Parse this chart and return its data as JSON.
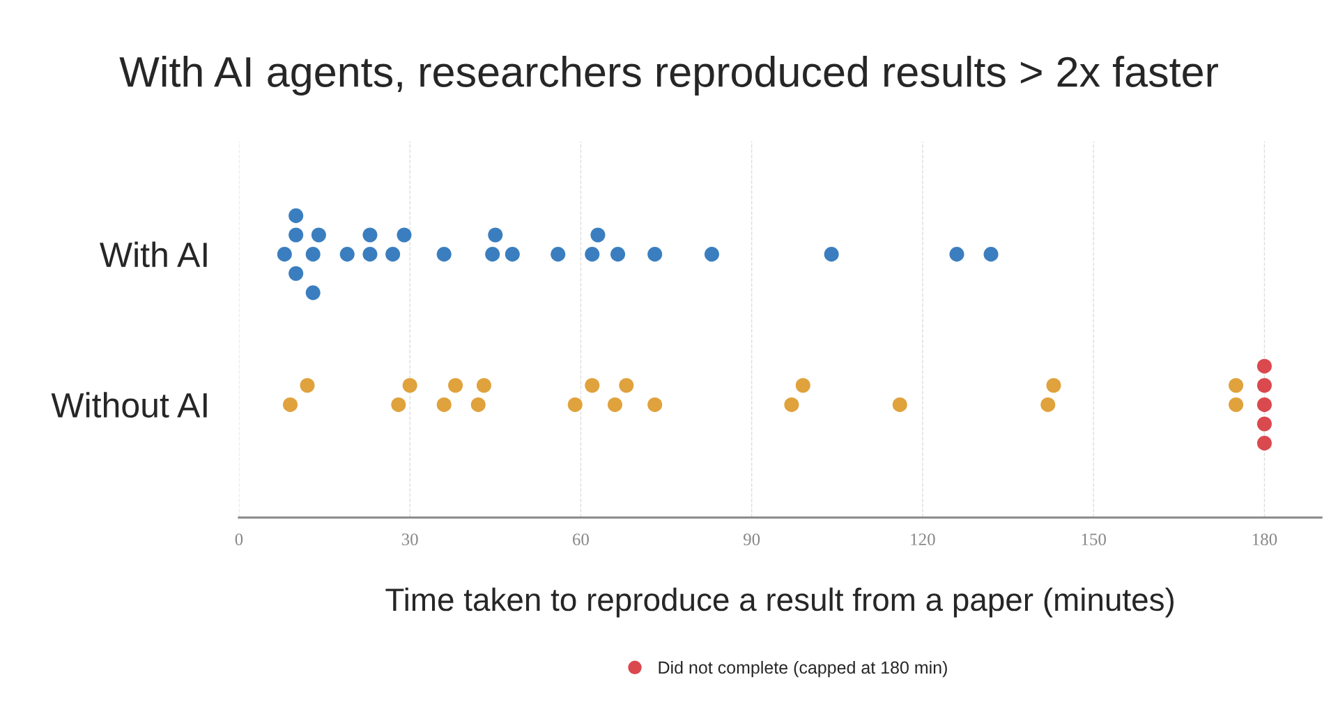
{
  "chart_data": {
    "type": "scatter",
    "orientation": "horizontal",
    "title": "With AI agents, researchers reproduced results > 2x faster",
    "xlabel": "Time taken to reproduce a result from a paper (minutes)",
    "categories": [
      "With AI",
      "Without AI"
    ],
    "xlim": [
      0,
      190
    ],
    "xticks": [
      0,
      30,
      60,
      90,
      120,
      150,
      180
    ],
    "grid": "x",
    "legend": "bottom",
    "marker": "circle",
    "series": [
      {
        "color": "#3a7ebf",
        "x": [
          "With AI",
          "With AI",
          "With AI",
          "With AI",
          "With AI",
          "With AI",
          "With AI",
          "With AI",
          "With AI",
          "With AI",
          "With AI",
          "With AI",
          "With AI",
          "With AI",
          "With AI",
          "With AI",
          "With AI",
          "With AI",
          "With AI",
          "With AI",
          "With AI",
          "With AI",
          "With AI",
          "With AI",
          "With AI"
        ],
        "values": [
          8,
          10,
          10,
          10,
          13,
          13,
          14,
          19,
          23,
          23,
          27,
          29,
          36,
          44.5,
          45,
          48,
          56,
          62,
          63,
          66.5,
          73,
          83,
          104,
          126,
          132
        ]
      },
      {
        "color": "#e0a23c",
        "x": [
          "Without AI",
          "Without AI",
          "Without AI",
          "Without AI",
          "Without AI",
          "Without AI",
          "Without AI",
          "Without AI",
          "Without AI",
          "Without AI",
          "Without AI",
          "Without AI",
          "Without AI",
          "Without AI",
          "Without AI",
          "Without AI",
          "Without AI",
          "Without AI",
          "Without AI",
          "Without AI"
        ],
        "values": [
          9,
          12,
          28,
          30,
          36,
          38,
          42,
          43,
          59,
          62,
          66,
          68,
          73,
          97,
          99,
          116,
          142,
          143,
          175,
          175
        ]
      },
      {
        "name": "Did not complete (capped at 180 min)",
        "color": "#d9494e",
        "x": [
          "Without AI",
          "Without AI",
          "Without AI",
          "Without AI",
          "Without AI"
        ],
        "values": [
          180,
          180,
          180,
          180,
          180
        ]
      }
    ]
  }
}
